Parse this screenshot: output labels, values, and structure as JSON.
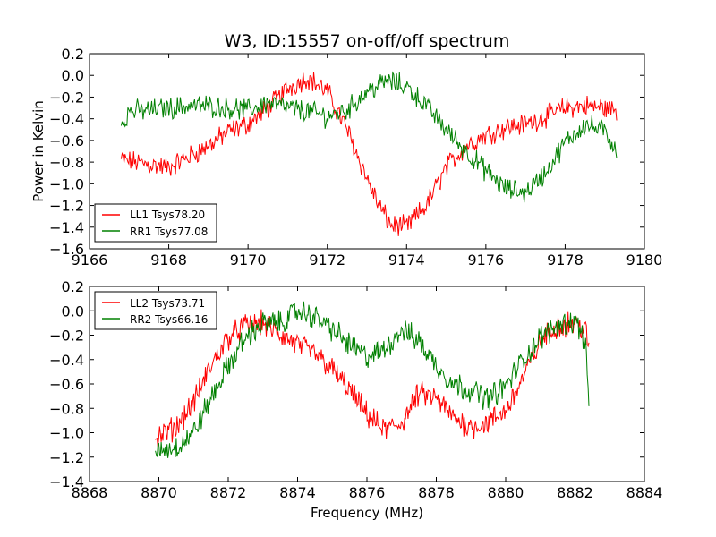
{
  "chart_data": [
    {
      "type": "line",
      "title": "W3, ID:15557 on-off/off spectrum",
      "xlabel": "",
      "ylabel": "Power in Kelvin",
      "xlim": [
        9166,
        9180
      ],
      "ylim": [
        -1.6,
        0.2
      ],
      "xticks": [
        9166,
        9168,
        9170,
        9172,
        9174,
        9176,
        9178,
        9180
      ],
      "yticks": [
        -1.6,
        -1.4,
        -1.2,
        -1.0,
        -0.8,
        -0.6,
        -0.4,
        -0.2,
        0.0,
        0.2
      ],
      "xtick_labels": [
        "9166",
        "9168",
        "9170",
        "9172",
        "9174",
        "9176",
        "9178",
        "9180"
      ],
      "ytick_labels": [
        "−1.6",
        "−1.4",
        "−1.2",
        "−1.0",
        "−0.8",
        "−0.6",
        "−0.4",
        "−0.2",
        "0.0",
        "0.2"
      ],
      "legend_position": "lower-left",
      "grid": false,
      "series": [
        {
          "name": "LL1 Tsys78.20",
          "color": "#ff0000",
          "x": [
            9166.8,
            9167.5,
            9168.0,
            9168.5,
            9169.0,
            9169.5,
            9170.0,
            9170.5,
            9171.0,
            9171.5,
            9172.0,
            9172.5,
            9173.0,
            9173.3,
            9173.6,
            9174.0,
            9174.5,
            9175.0,
            9175.5,
            9176.0,
            9176.5,
            9177.0,
            9177.5,
            9178.0,
            9178.5,
            9179.0,
            9179.3
          ],
          "y": [
            -0.78,
            -0.82,
            -0.85,
            -0.75,
            -0.65,
            -0.52,
            -0.45,
            -0.3,
            -0.12,
            -0.02,
            -0.15,
            -0.5,
            -0.95,
            -1.2,
            -1.38,
            -1.4,
            -1.2,
            -0.85,
            -0.65,
            -0.55,
            -0.48,
            -0.45,
            -0.38,
            -0.3,
            -0.28,
            -0.3,
            -0.32
          ]
        },
        {
          "name": "RR1 Tsys77.08",
          "color": "#008000",
          "x": [
            9166.8,
            9167.0,
            9167.5,
            9168.0,
            9168.5,
            9169.0,
            9169.5,
            9170.0,
            9170.5,
            9171.0,
            9171.5,
            9172.0,
            9172.5,
            9173.0,
            9173.5,
            9174.0,
            9174.5,
            9175.0,
            9175.5,
            9176.0,
            9176.5,
            9177.0,
            9177.5,
            9178.0,
            9178.5,
            9179.0,
            9179.3
          ],
          "y": [
            -0.45,
            -0.33,
            -0.32,
            -0.3,
            -0.28,
            -0.28,
            -0.3,
            -0.32,
            -0.25,
            -0.3,
            -0.33,
            -0.38,
            -0.32,
            -0.15,
            -0.05,
            -0.1,
            -0.28,
            -0.5,
            -0.7,
            -0.88,
            -1.05,
            -1.08,
            -0.9,
            -0.62,
            -0.45,
            -0.52,
            -0.68
          ]
        }
      ]
    },
    {
      "type": "line",
      "title": "",
      "xlabel": "Frequency (MHz)",
      "ylabel": "",
      "xlim": [
        8868,
        8884
      ],
      "ylim": [
        -1.4,
        0.2
      ],
      "xticks": [
        8868,
        8870,
        8872,
        8874,
        8876,
        8878,
        8880,
        8882,
        8884
      ],
      "yticks": [
        -1.4,
        -1.2,
        -1.0,
        -0.8,
        -0.6,
        -0.4,
        -0.2,
        0.0,
        0.2
      ],
      "xtick_labels": [
        "8868",
        "8870",
        "8872",
        "8874",
        "8876",
        "8878",
        "8880",
        "8882",
        "8884"
      ],
      "ytick_labels": [
        "−1.4",
        "−1.2",
        "−1.0",
        "−0.8",
        "−0.6",
        "−0.4",
        "−0.2",
        "0.0",
        "0.2"
      ],
      "legend_position": "upper-left",
      "grid": false,
      "series": [
        {
          "name": "LL2 Tsys73.71",
          "color": "#ff0000",
          "x": [
            8869.9,
            8870.5,
            8871.0,
            8871.5,
            8872.0,
            8872.5,
            8873.0,
            8873.5,
            8874.0,
            8874.5,
            8875.0,
            8875.5,
            8876.0,
            8876.5,
            8877.0,
            8877.5,
            8878.0,
            8878.5,
            8879.0,
            8879.5,
            8880.0,
            8880.5,
            8881.0,
            8881.5,
            8882.0,
            8882.3,
            8882.4
          ],
          "y": [
            -1.05,
            -0.95,
            -0.75,
            -0.45,
            -0.22,
            -0.12,
            -0.1,
            -0.2,
            -0.28,
            -0.35,
            -0.48,
            -0.65,
            -0.85,
            -0.98,
            -0.92,
            -0.68,
            -0.72,
            -0.88,
            -0.95,
            -0.92,
            -0.82,
            -0.55,
            -0.25,
            -0.12,
            -0.1,
            -0.15,
            -0.35
          ]
        },
        {
          "name": "RR2 Tsys66.16",
          "color": "#008000",
          "x": [
            8869.9,
            8870.5,
            8871.0,
            8871.5,
            8872.0,
            8872.5,
            8873.0,
            8873.5,
            8874.0,
            8874.5,
            8875.0,
            8875.5,
            8876.0,
            8876.5,
            8877.0,
            8877.5,
            8878.0,
            8878.5,
            8879.0,
            8879.5,
            8880.0,
            8880.5,
            8881.0,
            8881.5,
            8882.0,
            8882.3,
            8882.4
          ],
          "y": [
            -1.15,
            -1.12,
            -1.0,
            -0.72,
            -0.45,
            -0.22,
            -0.1,
            -0.1,
            0.0,
            -0.05,
            -0.15,
            -0.28,
            -0.38,
            -0.32,
            -0.15,
            -0.25,
            -0.45,
            -0.6,
            -0.65,
            -0.72,
            -0.62,
            -0.4,
            -0.22,
            -0.12,
            -0.08,
            -0.25,
            -0.8
          ]
        }
      ]
    }
  ]
}
